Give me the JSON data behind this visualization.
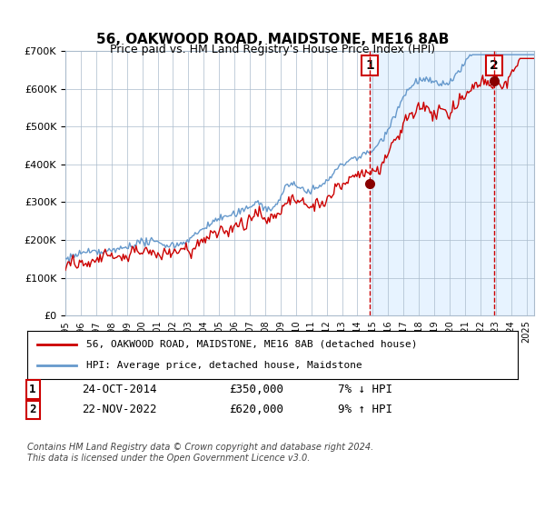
{
  "title": "56, OAKWOOD ROAD, MAIDSTONE, ME16 8AB",
  "subtitle": "Price paid vs. HM Land Registry's House Price Index (HPI)",
  "legend_line1": "56, OAKWOOD ROAD, MAIDSTONE, ME16 8AB (detached house)",
  "legend_line2": "HPI: Average price, detached house, Maidstone",
  "annotation1_label": "1",
  "annotation1_date": "24-OCT-2014",
  "annotation1_price": "£350,000",
  "annotation1_hpi": "7% ↓ HPI",
  "annotation2_label": "2",
  "annotation2_date": "22-NOV-2022",
  "annotation2_price": "£620,000",
  "annotation2_hpi": "9% ↑ HPI",
  "footer": "Contains HM Land Registry data © Crown copyright and database right 2024.\nThis data is licensed under the Open Government Licence v3.0.",
  "hpi_color": "#6699cc",
  "price_color": "#cc0000",
  "bg_color": "#ddeeff",
  "plot_bg": "#ffffff",
  "grid_color": "#aabbcc",
  "annotation_vline_color": "#cc0000",
  "marker_color": "#880000",
  "x_start_year": 1995,
  "x_end_year": 2025,
  "y_min": 0,
  "y_max": 700000,
  "sale1_year": 2014.82,
  "sale1_value": 350000,
  "sale2_year": 2022.9,
  "sale2_value": 620000
}
